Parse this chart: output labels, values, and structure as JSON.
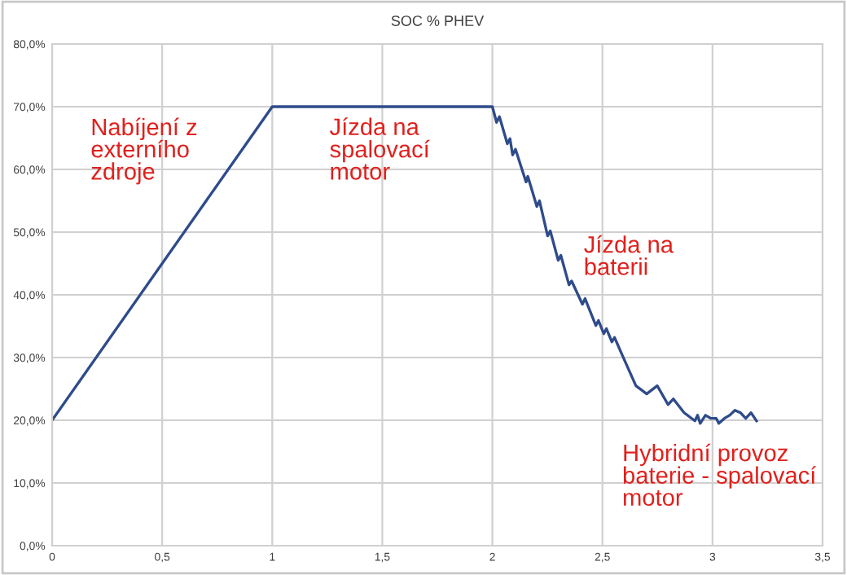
{
  "chart_data": {
    "type": "line",
    "title": "SOC % PHEV",
    "x": [
      0,
      1,
      2,
      2.019,
      2.032,
      2.068,
      2.08,
      2.092,
      2.105,
      2.153,
      2.161,
      2.202,
      2.214,
      2.251,
      2.263,
      2.299,
      2.311,
      2.348,
      2.36,
      2.409,
      2.421,
      2.47,
      2.482,
      2.506,
      2.518,
      2.543,
      2.555,
      2.591,
      2.652,
      2.701,
      2.749,
      2.798,
      2.822,
      2.871,
      2.92,
      2.932,
      2.944,
      2.968,
      2.993,
      3.017,
      3.029,
      3.054,
      3.078,
      3.102,
      3.127,
      3.151,
      3.175,
      3.2
    ],
    "series": [
      {
        "color": "#2f4b8a",
        "values": [
          20,
          70,
          70,
          67.5,
          68.4,
          64.1,
          64.9,
          62.3,
          63.2,
          58.0,
          58.9,
          54.1,
          55.0,
          49.4,
          50.2,
          45.5,
          46.3,
          41.6,
          42.2,
          38.5,
          39.4,
          35.1,
          35.9,
          33.8,
          34.6,
          32.5,
          33.2,
          30.3,
          25.5,
          24.2,
          25.5,
          22.5,
          23.4,
          21.2,
          19.9,
          20.8,
          19.5,
          20.8,
          20.3,
          20.3,
          19.5,
          20.3,
          20.8,
          21.6,
          21.2,
          20.3,
          21.2,
          19.9
        ]
      }
    ],
    "xlim": [
      0,
      3.5
    ],
    "xticks": [
      0,
      {
        "value": 0.5,
        "label": "0,5"
      },
      1,
      {
        "value": 1.5,
        "label": "1,5"
      },
      2,
      {
        "value": 2.5,
        "label": "2,5"
      },
      3,
      {
        "value": 3.5,
        "label": "3,5"
      }
    ],
    "ylim": [
      0,
      80
    ],
    "yticks": [
      {
        "value": 0,
        "label": "0,0%"
      },
      {
        "value": 10,
        "label": "10,0%"
      },
      {
        "value": 20,
        "label": "20,0%"
      },
      {
        "value": 30,
        "label": "30,0%"
      },
      {
        "value": 40,
        "label": "40,0%"
      },
      {
        "value": 50,
        "label": "50,0%"
      },
      {
        "value": 60,
        "label": "60,0%"
      },
      {
        "value": 70,
        "label": "70,0%"
      },
      {
        "value": 80,
        "label": "80,0%"
      }
    ],
    "grid": true,
    "marker": "none",
    "line_style": "solid",
    "annotations": [
      "Nabíjení z\nexterního\nzdroje",
      "Jízda na\nspalovací\nmotor",
      "Jízda na\nbaterii",
      "Hybridní provoz\nbaterie - spalovací\nmotor"
    ]
  }
}
